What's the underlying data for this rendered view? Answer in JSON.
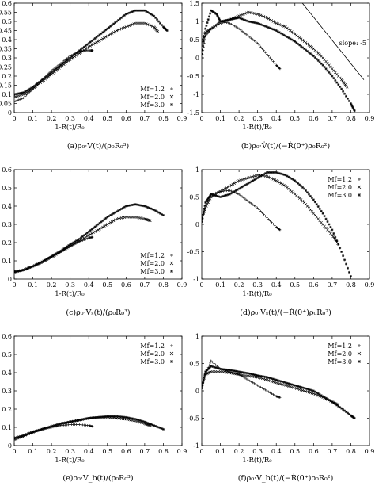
{
  "figure": {
    "legend_symbols": [
      "+",
      "×",
      "✳"
    ]
  },
  "chart_data": [
    {
      "id": "a",
      "type": "scatter",
      "caption": "(a)ρ₀·V(t)/(ρ₀R₀³)",
      "xlabel": "1-R(t)/R₀",
      "ylabel": "",
      "xlim": [
        0,
        0.9
      ],
      "ylim": [
        0,
        0.6
      ],
      "xticks": [
        "0",
        "0.1",
        "0.2",
        "0.3",
        "0.4",
        "0.5",
        "0.6",
        "0.7",
        "0.8",
        "0.9"
      ],
      "yticks": [
        "0",
        "0.05",
        "0.1",
        "0.15",
        "0.2",
        "0.25",
        "0.3",
        "0.35",
        "0.4",
        "0.45",
        "0.5",
        "0.55",
        "0.6"
      ],
      "ytick_values": [
        0,
        0.05,
        0.1,
        0.15,
        0.2,
        0.25,
        0.3,
        0.35,
        0.4,
        0.45,
        0.5,
        0.55,
        0.6
      ],
      "xtick_values": [
        0,
        0.1,
        0.2,
        0.3,
        0.4,
        0.5,
        0.6,
        0.7,
        0.8,
        0.9
      ],
      "legend": {
        "position": "bottom-right",
        "entries": [
          "Mf=1.2",
          "Mf=2.0",
          "Mf=3.0"
        ]
      },
      "series": [
        {
          "name": "Mf=1.2",
          "x": [
            0,
            0.05,
            0.1,
            0.15,
            0.2,
            0.25,
            0.3,
            0.35,
            0.38,
            0.41,
            0.42
          ],
          "y": [
            0.06,
            0.08,
            0.13,
            0.18,
            0.23,
            0.27,
            0.31,
            0.335,
            0.34,
            0.34,
            0.34
          ]
        },
        {
          "name": "Mf=2.0",
          "x": [
            0,
            0.05,
            0.1,
            0.15,
            0.2,
            0.25,
            0.3,
            0.35,
            0.4,
            0.45,
            0.5,
            0.55,
            0.6,
            0.65,
            0.7,
            0.75,
            0.77
          ],
          "y": [
            0.085,
            0.1,
            0.13,
            0.17,
            0.21,
            0.25,
            0.29,
            0.325,
            0.36,
            0.39,
            0.42,
            0.45,
            0.47,
            0.49,
            0.49,
            0.47,
            0.445
          ]
        },
        {
          "name": "Mf=3.0",
          "x": [
            0,
            0.05,
            0.1,
            0.15,
            0.2,
            0.25,
            0.3,
            0.35,
            0.4,
            0.45,
            0.5,
            0.55,
            0.6,
            0.65,
            0.7,
            0.75,
            0.8,
            0.82
          ],
          "y": [
            0.1,
            0.11,
            0.14,
            0.18,
            0.22,
            0.26,
            0.3,
            0.34,
            0.38,
            0.42,
            0.46,
            0.5,
            0.54,
            0.56,
            0.56,
            0.53,
            0.47,
            0.45
          ]
        }
      ]
    },
    {
      "id": "b",
      "type": "scatter",
      "caption": "(b)ρ₀·V̇(t)/(−Ṙ(0⁺)ρ₀R₀²)",
      "xlabel": "1-R(t)/R₀",
      "ylabel": "",
      "xlim": [
        0,
        0.9
      ],
      "ylim": [
        -1.5,
        1.5
      ],
      "xticks": [
        "0",
        "0.1",
        "0.2",
        "0.3",
        "0.4",
        "0.5",
        "0.6",
        "0.7",
        "0.8",
        "0.9"
      ],
      "yticks": [
        "-1.5",
        "-1",
        "-0.5",
        "0",
        "0.5",
        "1",
        "1.5"
      ],
      "ytick_values": [
        -1.5,
        -1,
        -0.5,
        0,
        0.5,
        1,
        1.5
      ],
      "xtick_values": [
        0,
        0.1,
        0.2,
        0.3,
        0.4,
        0.5,
        0.6,
        0.7,
        0.8,
        0.9
      ],
      "legend": {
        "position": "none",
        "entries": []
      },
      "annotation": {
        "text": "slope: -5",
        "line": {
          "x": [
            0.54,
            0.87
          ],
          "y": [
            1.5,
            -0.6
          ]
        }
      },
      "series": [
        {
          "name": "Mf=1.2",
          "x": [
            0,
            0.02,
            0.05,
            0.1,
            0.15,
            0.2,
            0.25,
            0.3,
            0.35,
            0.4,
            0.42
          ],
          "y": [
            0.0,
            0.6,
            0.8,
            1.0,
            0.95,
            0.8,
            0.6,
            0.4,
            0.1,
            -0.2,
            -0.3
          ]
        },
        {
          "name": "Mf=2.0",
          "x": [
            0,
            0.02,
            0.05,
            0.1,
            0.15,
            0.2,
            0.25,
            0.3,
            0.35,
            0.4,
            0.45,
            0.5,
            0.55,
            0.6,
            0.65,
            0.7,
            0.75,
            0.78
          ],
          "y": [
            0.4,
            0.7,
            0.8,
            0.95,
            1.05,
            1.15,
            1.25,
            1.2,
            1.1,
            0.95,
            0.85,
            0.65,
            0.45,
            0.25,
            0.0,
            -0.3,
            -0.6,
            -0.8
          ]
        },
        {
          "name": "Mf=3.0",
          "x": [
            0,
            0.02,
            0.05,
            0.08,
            0.1,
            0.15,
            0.2,
            0.25,
            0.3,
            0.35,
            0.4,
            0.45,
            0.5,
            0.55,
            0.6,
            0.65,
            0.7,
            0.75,
            0.8,
            0.82
          ],
          "y": [
            0.1,
            0.8,
            1.3,
            1.2,
            1.0,
            1.05,
            1.1,
            1.0,
            0.95,
            0.85,
            0.75,
            0.6,
            0.45,
            0.25,
            0.05,
            -0.2,
            -0.5,
            -0.85,
            -1.25,
            -1.45
          ]
        }
      ]
    },
    {
      "id": "c",
      "type": "scatter",
      "caption": "(c)ρ₀·Vₛ(t)/(ρ₀R₀³)",
      "xlabel": "1-R(t)/R₀",
      "ylabel": "",
      "xlim": [
        0,
        0.9
      ],
      "ylim": [
        0,
        0.6
      ],
      "xticks": [
        "0",
        "0.1",
        "0.2",
        "0.3",
        "0.4",
        "0.5",
        "0.6",
        "0.7",
        "0.8",
        "0.9"
      ],
      "yticks": [
        "0",
        "0.1",
        "0.2",
        "0.3",
        "0.4",
        "0.5",
        "0.6"
      ],
      "ytick_values": [
        0,
        0.1,
        0.2,
        0.3,
        0.4,
        0.5,
        0.6
      ],
      "xtick_values": [
        0,
        0.1,
        0.2,
        0.3,
        0.4,
        0.5,
        0.6,
        0.7,
        0.8,
        0.9
      ],
      "legend": {
        "position": "bottom-right",
        "entries": [
          "Mf=1.2",
          "Mf=2.0",
          "Mf=3.0"
        ]
      },
      "series": [
        {
          "name": "Mf=1.2",
          "x": [
            0,
            0.05,
            0.1,
            0.15,
            0.2,
            0.25,
            0.3,
            0.35,
            0.4,
            0.42
          ],
          "y": [
            0.035,
            0.05,
            0.07,
            0.09,
            0.12,
            0.15,
            0.18,
            0.205,
            0.225,
            0.23
          ]
        },
        {
          "name": "Mf=2.0",
          "x": [
            0,
            0.05,
            0.1,
            0.15,
            0.2,
            0.25,
            0.3,
            0.35,
            0.4,
            0.45,
            0.5,
            0.55,
            0.6,
            0.65,
            0.7,
            0.73
          ],
          "y": [
            0.04,
            0.05,
            0.07,
            0.095,
            0.12,
            0.15,
            0.18,
            0.21,
            0.24,
            0.27,
            0.3,
            0.33,
            0.34,
            0.34,
            0.33,
            0.32
          ]
        },
        {
          "name": "Mf=3.0",
          "x": [
            0,
            0.05,
            0.1,
            0.15,
            0.2,
            0.25,
            0.3,
            0.35,
            0.4,
            0.45,
            0.5,
            0.55,
            0.6,
            0.65,
            0.7,
            0.75,
            0.8
          ],
          "y": [
            0.04,
            0.05,
            0.07,
            0.095,
            0.125,
            0.155,
            0.19,
            0.22,
            0.26,
            0.3,
            0.34,
            0.37,
            0.4,
            0.41,
            0.4,
            0.38,
            0.35
          ]
        }
      ]
    },
    {
      "id": "d",
      "type": "scatter",
      "caption": "(d)ρ₀·V̇ₛ(t)/(−Ṙ(0⁺)ρ₀R₀²)",
      "xlabel": "1-R(t)/R₀",
      "ylabel": "",
      "xlim": [
        0,
        0.9
      ],
      "ylim": [
        -1,
        1
      ],
      "xticks": [
        "0",
        "0.1",
        "0.2",
        "0.3",
        "0.4",
        "0.5",
        "0.6",
        "0.7",
        "0.8",
        "0.9"
      ],
      "yticks": [
        "-1",
        "-0.5",
        "0",
        "0.5",
        "1"
      ],
      "ytick_values": [
        -1,
        -0.5,
        0,
        0.5,
        1
      ],
      "xtick_values": [
        0,
        0.1,
        0.2,
        0.3,
        0.4,
        0.5,
        0.6,
        0.7,
        0.8,
        0.9
      ],
      "legend": {
        "position": "top-right",
        "entries": [
          "Mf=1.2",
          "Mf=2.0",
          "Mf=3.0"
        ]
      },
      "series": [
        {
          "name": "Mf=1.2",
          "x": [
            0,
            0.02,
            0.05,
            0.1,
            0.15,
            0.2,
            0.25,
            0.3,
            0.35,
            0.4,
            0.42
          ],
          "y": [
            0.05,
            0.35,
            0.55,
            0.6,
            0.62,
            0.55,
            0.42,
            0.3,
            0.12,
            -0.05,
            -0.1
          ]
        },
        {
          "name": "Mf=2.0",
          "x": [
            0,
            0.02,
            0.05,
            0.1,
            0.15,
            0.2,
            0.25,
            0.3,
            0.35,
            0.4,
            0.45,
            0.5,
            0.55,
            0.6,
            0.65,
            0.7,
            0.73
          ],
          "y": [
            0.1,
            0.3,
            0.5,
            0.6,
            0.7,
            0.8,
            0.85,
            0.9,
            0.88,
            0.8,
            0.7,
            0.55,
            0.4,
            0.2,
            0.0,
            -0.2,
            -0.35
          ]
        },
        {
          "name": "Mf=3.0",
          "x": [
            0,
            0.02,
            0.05,
            0.1,
            0.15,
            0.2,
            0.25,
            0.3,
            0.35,
            0.4,
            0.45,
            0.5,
            0.55,
            0.6,
            0.65,
            0.7,
            0.75,
            0.8
          ],
          "y": [
            0.05,
            0.4,
            0.55,
            0.5,
            0.55,
            0.65,
            0.75,
            0.85,
            0.95,
            0.95,
            0.9,
            0.8,
            0.65,
            0.45,
            0.2,
            -0.1,
            -0.5,
            -0.95
          ]
        }
      ]
    },
    {
      "id": "e",
      "type": "scatter",
      "caption": "(e)ρ₀·V_b(t)/(ρ₀R₀³)",
      "xlabel": "1-R(t)/R₀",
      "ylabel": "",
      "xlim": [
        0,
        0.9
      ],
      "ylim": [
        0,
        0.6
      ],
      "xticks": [
        "0",
        "0.1",
        "0.2",
        "0.3",
        "0.4",
        "0.5",
        "0.6",
        "0.7",
        "0.8",
        "0.9"
      ],
      "yticks": [
        "0",
        "0.1",
        "0.2",
        "0.3",
        "0.4",
        "0.5",
        "0.6"
      ],
      "ytick_values": [
        0,
        0.1,
        0.2,
        0.3,
        0.4,
        0.5,
        0.6
      ],
      "xtick_values": [
        0,
        0.1,
        0.2,
        0.3,
        0.4,
        0.5,
        0.6,
        0.7,
        0.8,
        0.9
      ],
      "legend": {
        "position": "top-right",
        "entries": [
          "Mf=1.2",
          "Mf=2.0",
          "Mf=3.0"
        ]
      },
      "series": [
        {
          "name": "Mf=1.2",
          "x": [
            0,
            0.05,
            0.1,
            0.15,
            0.2,
            0.25,
            0.3,
            0.35,
            0.4,
            0.42
          ],
          "y": [
            0.03,
            0.05,
            0.07,
            0.09,
            0.1,
            0.11,
            0.115,
            0.115,
            0.11,
            0.105
          ]
        },
        {
          "name": "Mf=2.0",
          "x": [
            0,
            0.05,
            0.1,
            0.15,
            0.2,
            0.25,
            0.3,
            0.35,
            0.4,
            0.45,
            0.5,
            0.55,
            0.6,
            0.65,
            0.7,
            0.73
          ],
          "y": [
            0.04,
            0.055,
            0.075,
            0.09,
            0.105,
            0.12,
            0.13,
            0.14,
            0.15,
            0.155,
            0.155,
            0.15,
            0.145,
            0.135,
            0.12,
            0.11
          ]
        },
        {
          "name": "Mf=3.0",
          "x": [
            0,
            0.05,
            0.1,
            0.15,
            0.2,
            0.25,
            0.3,
            0.35,
            0.4,
            0.45,
            0.5,
            0.55,
            0.6,
            0.65,
            0.7,
            0.75,
            0.8
          ],
          "y": [
            0.04,
            0.055,
            0.075,
            0.09,
            0.105,
            0.12,
            0.13,
            0.14,
            0.15,
            0.155,
            0.16,
            0.16,
            0.155,
            0.145,
            0.13,
            0.11,
            0.09
          ]
        }
      ]
    },
    {
      "id": "f",
      "type": "scatter",
      "caption": "(f)ρ₀·V̇_b(t)/(−Ṙ(0⁺)ρ₀R₀²)",
      "xlabel": "1-R(t)/R₀",
      "ylabel": "",
      "xlim": [
        0,
        0.9
      ],
      "ylim": [
        -1,
        1
      ],
      "xticks": [
        "0",
        "0.1",
        "0.2",
        "0.3",
        "0.4",
        "0.5",
        "0.6",
        "0.7",
        "0.8",
        "0.9"
      ],
      "yticks": [
        "-1",
        "-0.5",
        "0",
        "0.5",
        "1"
      ],
      "ytick_values": [
        -1,
        -0.5,
        0,
        0.5,
        1
      ],
      "xtick_values": [
        0,
        0.1,
        0.2,
        0.3,
        0.4,
        0.5,
        0.6,
        0.7,
        0.8,
        0.9
      ],
      "legend": {
        "position": "top-right",
        "entries": [
          "Mf=1.2",
          "Mf=2.0",
          "Mf=3.0"
        ]
      },
      "series": [
        {
          "name": "Mf=1.2",
          "x": [
            0,
            0.02,
            0.05,
            0.1,
            0.15,
            0.2,
            0.25,
            0.3,
            0.35,
            0.4,
            0.42
          ],
          "y": [
            0.05,
            0.3,
            0.55,
            0.4,
            0.35,
            0.3,
            0.2,
            0.1,
            0.0,
            -0.1,
            -0.12
          ]
        },
        {
          "name": "Mf=2.0",
          "x": [
            0,
            0.02,
            0.05,
            0.1,
            0.15,
            0.2,
            0.25,
            0.3,
            0.35,
            0.4,
            0.45,
            0.5,
            0.55,
            0.6,
            0.65,
            0.7,
            0.73
          ],
          "y": [
            0.1,
            0.3,
            0.35,
            0.35,
            0.33,
            0.3,
            0.27,
            0.25,
            0.2,
            0.15,
            0.1,
            0.05,
            0.0,
            -0.05,
            -0.12,
            -0.2,
            -0.25
          ]
        },
        {
          "name": "Mf=3.0",
          "x": [
            0,
            0.02,
            0.05,
            0.1,
            0.15,
            0.2,
            0.25,
            0.3,
            0.35,
            0.4,
            0.45,
            0.5,
            0.55,
            0.6,
            0.65,
            0.7,
            0.75,
            0.8,
            0.82
          ],
          "y": [
            0.05,
            0.35,
            0.45,
            0.4,
            0.38,
            0.35,
            0.32,
            0.28,
            0.25,
            0.2,
            0.15,
            0.1,
            0.05,
            0.0,
            -0.1,
            -0.2,
            -0.32,
            -0.45,
            -0.5
          ]
        }
      ]
    }
  ]
}
